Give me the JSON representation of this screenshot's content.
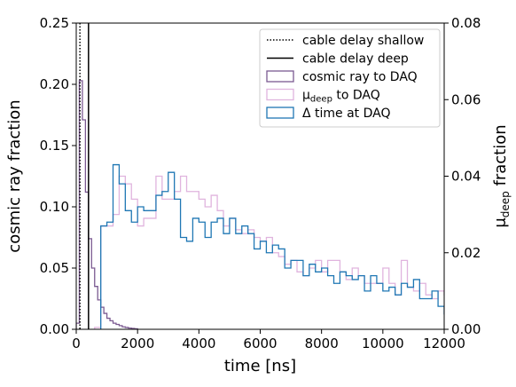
{
  "chart_data": {
    "type": "line",
    "subtype": "step-histogram",
    "xlabel": "time [ns]",
    "ylabel_left": "cosmic ray fraction",
    "ylabel_right_main": "μ",
    "ylabel_right_sub": "deep",
    "ylabel_right_tail": " fraction",
    "xlim": [
      0,
      12000
    ],
    "ylim_left": [
      0,
      0.25
    ],
    "ylim_right": [
      0,
      0.08
    ],
    "x_ticks": [
      0,
      2000,
      4000,
      6000,
      8000,
      10000,
      12000
    ],
    "x_tick_labels": [
      "0",
      "2000",
      "4000",
      "6000",
      "8000",
      "10000",
      "12000"
    ],
    "y_left_ticks": [
      0,
      0.05,
      0.1,
      0.15,
      0.2,
      0.25
    ],
    "y_left_tick_labels": [
      "0.00",
      "0.05",
      "0.10",
      "0.15",
      "0.20",
      "0.25"
    ],
    "y_right_ticks": [
      0,
      0.02,
      0.04,
      0.06,
      0.08
    ],
    "y_right_tick_labels": [
      "0.00",
      "0.02",
      "0.04",
      "0.06",
      "0.08"
    ],
    "grid": false,
    "legend_position": "top-right",
    "vlines": [
      {
        "name": "cable delay shallow",
        "x": 120,
        "color": "#000000",
        "style": "dotted"
      },
      {
        "name": "cable delay deep",
        "x": 400,
        "color": "#000000",
        "style": "solid"
      }
    ],
    "series": [
      {
        "name": "cosmic ray to DAQ",
        "legend_text": "cosmic ray to DAQ",
        "axis": "left",
        "color": "#7b5a91",
        "bin_width": 100,
        "edges_start": 0,
        "values": [
          0.005,
          0.203,
          0.171,
          0.112,
          0.074,
          0.05,
          0.035,
          0.024,
          0.018,
          0.013,
          0.009,
          0.007,
          0.005,
          0.004,
          0.003,
          0.002,
          0.0015,
          0.001,
          0.0007,
          0.0004
        ]
      },
      {
        "name": "μdeep to DAQ",
        "legend_main": "μ",
        "legend_sub": "deep",
        "legend_tail": " to DAQ",
        "axis": "right",
        "color": "#e0b4de",
        "bin_width": 200,
        "edges_start": 600,
        "values": [
          0.0005,
          0.027,
          0.027,
          0.03,
          0.04,
          0.038,
          0.034,
          0.027,
          0.029,
          0.029,
          0.04,
          0.034,
          0.034,
          0.036,
          0.04,
          0.036,
          0.036,
          0.034,
          0.032,
          0.035,
          0.031,
          0.027,
          0.029,
          0.026,
          0.025,
          0.026,
          0.024,
          0.023,
          0.024,
          0.02,
          0.019,
          0.017,
          0.018,
          0.015,
          0.014,
          0.016,
          0.018,
          0.015,
          0.018,
          0.018,
          0.015,
          0.013,
          0.016,
          0.014,
          0.012,
          0.012,
          0.012,
          0.016,
          0.012,
          0.009,
          0.018,
          0.011,
          0.01,
          0.012,
          0.009,
          0.008,
          0.01,
          0.009,
          0.005,
          0.005
        ]
      },
      {
        "name": "Δ time at DAQ",
        "legend_text": "Δ time at DAQ",
        "axis": "right",
        "color": "#1f77b4",
        "bin_width": 200,
        "edges_start": 800,
        "values": [
          0.027,
          0.028,
          0.043,
          0.038,
          0.031,
          0.028,
          0.032,
          0.031,
          0.031,
          0.035,
          0.036,
          0.041,
          0.034,
          0.024,
          0.023,
          0.029,
          0.028,
          0.024,
          0.028,
          0.029,
          0.025,
          0.029,
          0.025,
          0.027,
          0.025,
          0.021,
          0.023,
          0.02,
          0.022,
          0.021,
          0.016,
          0.018,
          0.018,
          0.014,
          0.017,
          0.015,
          0.016,
          0.014,
          0.012,
          0.015,
          0.014,
          0.013,
          0.014,
          0.01,
          0.014,
          0.012,
          0.01,
          0.011,
          0.009,
          0.012,
          0.011,
          0.013,
          0.008,
          0.008,
          0.01,
          0.006,
          0.004,
          0.005,
          0.006
        ]
      }
    ]
  }
}
